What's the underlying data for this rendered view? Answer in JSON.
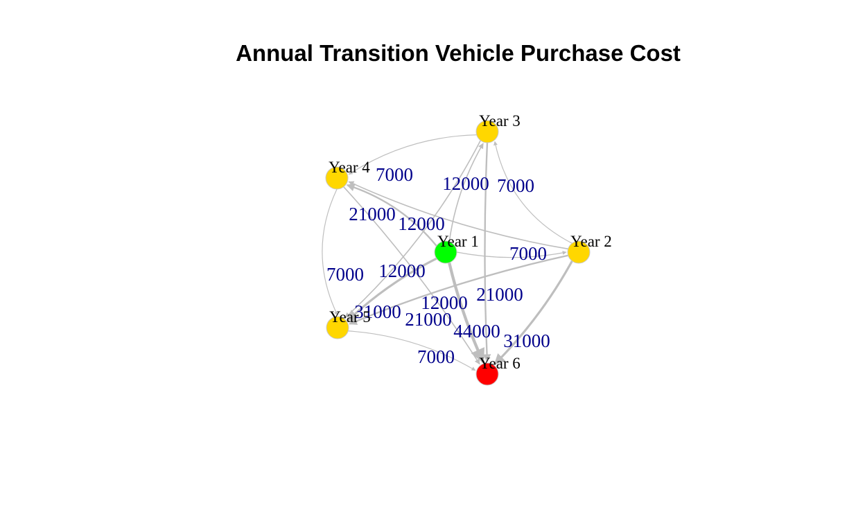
{
  "title": "Annual Transition Vehicle Purchase Cost",
  "nodes": [
    {
      "id": "y1",
      "label": "Year 1",
      "color": "#00ff00"
    },
    {
      "id": "y2",
      "label": "Year 2",
      "color": "#ffd700"
    },
    {
      "id": "y3",
      "label": "Year 3",
      "color": "#ffd700"
    },
    {
      "id": "y4",
      "label": "Year 4",
      "color": "#ffd700"
    },
    {
      "id": "y5",
      "label": "Year 5",
      "color": "#ffd700"
    },
    {
      "id": "y6",
      "label": "Year 6",
      "color": "#ff0000"
    }
  ],
  "edges": [
    {
      "from": "y1",
      "to": "y2",
      "cost": "7000"
    },
    {
      "from": "y1",
      "to": "y3",
      "cost": "12000"
    },
    {
      "from": "y1",
      "to": "y4",
      "cost": "21000"
    },
    {
      "from": "y1",
      "to": "y5",
      "cost": "31000"
    },
    {
      "from": "y1",
      "to": "y6",
      "cost": "44000"
    },
    {
      "from": "y2",
      "to": "y3",
      "cost": "7000"
    },
    {
      "from": "y2",
      "to": "y4",
      "cost": "12000"
    },
    {
      "from": "y2",
      "to": "y5",
      "cost": "21000"
    },
    {
      "from": "y2",
      "to": "y6",
      "cost": "31000"
    },
    {
      "from": "y3",
      "to": "y4",
      "cost": "7000"
    },
    {
      "from": "y3",
      "to": "y5",
      "cost": "12000"
    },
    {
      "from": "y3",
      "to": "y6",
      "cost": "21000"
    },
    {
      "from": "y4",
      "to": "y5",
      "cost": "7000"
    },
    {
      "from": "y4",
      "to": "y6",
      "cost": "12000"
    },
    {
      "from": "y5",
      "to": "y6",
      "cost": "7000"
    }
  ],
  "colors": {
    "edge": "#bebebe",
    "edge_label": "#00008b"
  }
}
